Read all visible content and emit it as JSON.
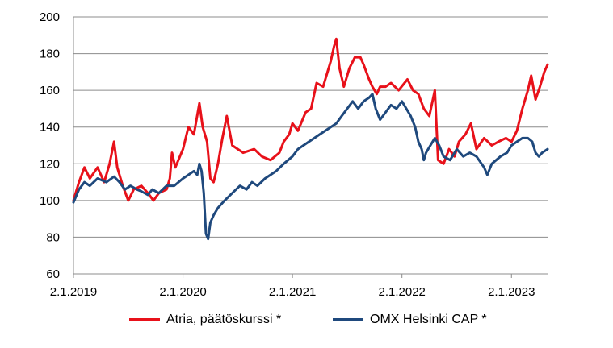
{
  "chart_data": {
    "type": "line",
    "title": "",
    "xlabel": "",
    "ylabel": "",
    "ylim": [
      60,
      200
    ],
    "yticks": [
      60,
      80,
      100,
      120,
      140,
      160,
      180,
      200
    ],
    "x_ticks": [
      "2.1.2019",
      "2.1.2020",
      "2.1.2021",
      "2.1.2022",
      "2.1.2023"
    ],
    "grid": "horizontal",
    "legend": "bottom",
    "series": [
      {
        "name": "Atria, päätöskurssi *",
        "color": "#e8111a",
        "points": [
          [
            2019.0,
            100
          ],
          [
            2019.05,
            110
          ],
          [
            2019.1,
            118
          ],
          [
            2019.15,
            112
          ],
          [
            2019.22,
            118
          ],
          [
            2019.28,
            110
          ],
          [
            2019.33,
            120
          ],
          [
            2019.37,
            132
          ],
          [
            2019.4,
            118
          ],
          [
            2019.45,
            108
          ],
          [
            2019.5,
            100
          ],
          [
            2019.55,
            106
          ],
          [
            2019.62,
            108
          ],
          [
            2019.68,
            104
          ],
          [
            2019.73,
            100
          ],
          [
            2019.78,
            104
          ],
          [
            2019.85,
            106
          ],
          [
            2019.88,
            112
          ],
          [
            2019.9,
            126
          ],
          [
            2019.93,
            118
          ],
          [
            2020.0,
            128
          ],
          [
            2020.05,
            140
          ],
          [
            2020.1,
            136
          ],
          [
            2020.15,
            153
          ],
          [
            2020.18,
            140
          ],
          [
            2020.22,
            132
          ],
          [
            2020.25,
            112
          ],
          [
            2020.28,
            110
          ],
          [
            2020.32,
            120
          ],
          [
            2020.36,
            134
          ],
          [
            2020.4,
            146
          ],
          [
            2020.45,
            130
          ],
          [
            2020.55,
            126
          ],
          [
            2020.65,
            128
          ],
          [
            2020.72,
            124
          ],
          [
            2020.8,
            122
          ],
          [
            2020.88,
            126
          ],
          [
            2020.92,
            132
          ],
          [
            2020.97,
            136
          ],
          [
            2021.0,
            142
          ],
          [
            2021.05,
            138
          ],
          [
            2021.12,
            148
          ],
          [
            2021.17,
            150
          ],
          [
            2021.22,
            164
          ],
          [
            2021.28,
            162
          ],
          [
            2021.35,
            176
          ],
          [
            2021.38,
            184
          ],
          [
            2021.4,
            188
          ],
          [
            2021.43,
            172
          ],
          [
            2021.47,
            162
          ],
          [
            2021.52,
            172
          ],
          [
            2021.57,
            178
          ],
          [
            2021.62,
            178
          ],
          [
            2021.65,
            174
          ],
          [
            2021.7,
            166
          ],
          [
            2021.73,
            162
          ],
          [
            2021.77,
            158
          ],
          [
            2021.8,
            162
          ],
          [
            2021.85,
            162
          ],
          [
            2021.9,
            164
          ],
          [
            2021.97,
            160
          ],
          [
            2022.05,
            166
          ],
          [
            2022.1,
            160
          ],
          [
            2022.15,
            158
          ],
          [
            2022.2,
            150
          ],
          [
            2022.25,
            146
          ],
          [
            2022.3,
            160
          ],
          [
            2022.33,
            122
          ],
          [
            2022.38,
            120
          ],
          [
            2022.43,
            128
          ],
          [
            2022.48,
            124
          ],
          [
            2022.52,
            132
          ],
          [
            2022.58,
            136
          ],
          [
            2022.63,
            142
          ],
          [
            2022.68,
            128
          ],
          [
            2022.75,
            134
          ],
          [
            2022.82,
            130
          ],
          [
            2022.88,
            132
          ],
          [
            2022.95,
            134
          ],
          [
            2023.0,
            132
          ],
          [
            2023.05,
            138
          ],
          [
            2023.1,
            150
          ],
          [
            2023.15,
            160
          ],
          [
            2023.18,
            168
          ],
          [
            2023.22,
            155
          ],
          [
            2023.26,
            162
          ],
          [
            2023.3,
            170
          ],
          [
            2023.33,
            174
          ]
        ]
      },
      {
        "name": "OMX Helsinki CAP *",
        "color": "#1f497d",
        "points": [
          [
            2019.0,
            99
          ],
          [
            2019.05,
            106
          ],
          [
            2019.1,
            110
          ],
          [
            2019.15,
            108
          ],
          [
            2019.22,
            112
          ],
          [
            2019.3,
            110
          ],
          [
            2019.37,
            113
          ],
          [
            2019.42,
            110
          ],
          [
            2019.47,
            106
          ],
          [
            2019.52,
            108
          ],
          [
            2019.58,
            106
          ],
          [
            2019.62,
            105
          ],
          [
            2019.68,
            103
          ],
          [
            2019.72,
            106
          ],
          [
            2019.78,
            104
          ],
          [
            2019.85,
            108
          ],
          [
            2019.92,
            108
          ],
          [
            2020.0,
            112
          ],
          [
            2020.05,
            114
          ],
          [
            2020.1,
            116
          ],
          [
            2020.13,
            114
          ],
          [
            2020.15,
            120
          ],
          [
            2020.17,
            116
          ],
          [
            2020.19,
            104
          ],
          [
            2020.21,
            82
          ],
          [
            2020.23,
            79
          ],
          [
            2020.25,
            88
          ],
          [
            2020.28,
            92
          ],
          [
            2020.32,
            96
          ],
          [
            2020.38,
            100
          ],
          [
            2020.45,
            104
          ],
          [
            2020.52,
            108
          ],
          [
            2020.58,
            106
          ],
          [
            2020.63,
            110
          ],
          [
            2020.68,
            108
          ],
          [
            2020.75,
            112
          ],
          [
            2020.8,
            114
          ],
          [
            2020.85,
            116
          ],
          [
            2020.92,
            120
          ],
          [
            2021.0,
            124
          ],
          [
            2021.05,
            128
          ],
          [
            2021.1,
            130
          ],
          [
            2021.15,
            132
          ],
          [
            2021.2,
            134
          ],
          [
            2021.25,
            136
          ],
          [
            2021.3,
            138
          ],
          [
            2021.35,
            140
          ],
          [
            2021.4,
            142
          ],
          [
            2021.45,
            146
          ],
          [
            2021.5,
            150
          ],
          [
            2021.55,
            154
          ],
          [
            2021.6,
            150
          ],
          [
            2021.65,
            154
          ],
          [
            2021.7,
            156
          ],
          [
            2021.73,
            158
          ],
          [
            2021.76,
            150
          ],
          [
            2021.8,
            144
          ],
          [
            2021.85,
            148
          ],
          [
            2021.9,
            152
          ],
          [
            2021.95,
            150
          ],
          [
            2022.0,
            154
          ],
          [
            2022.04,
            150
          ],
          [
            2022.08,
            146
          ],
          [
            2022.12,
            140
          ],
          [
            2022.15,
            132
          ],
          [
            2022.18,
            128
          ],
          [
            2022.2,
            122
          ],
          [
            2022.22,
            126
          ],
          [
            2022.26,
            130
          ],
          [
            2022.3,
            134
          ],
          [
            2022.34,
            130
          ],
          [
            2022.38,
            124
          ],
          [
            2022.44,
            122
          ],
          [
            2022.5,
            128
          ],
          [
            2022.56,
            124
          ],
          [
            2022.62,
            126
          ],
          [
            2022.68,
            124
          ],
          [
            2022.75,
            118
          ],
          [
            2022.78,
            114
          ],
          [
            2022.82,
            120
          ],
          [
            2022.9,
            124
          ],
          [
            2022.96,
            126
          ],
          [
            2023.0,
            130
          ],
          [
            2023.05,
            132
          ],
          [
            2023.1,
            134
          ],
          [
            2023.15,
            134
          ],
          [
            2023.19,
            132
          ],
          [
            2023.22,
            126
          ],
          [
            2023.25,
            124
          ],
          [
            2023.28,
            126
          ],
          [
            2023.33,
            128
          ]
        ]
      }
    ]
  }
}
